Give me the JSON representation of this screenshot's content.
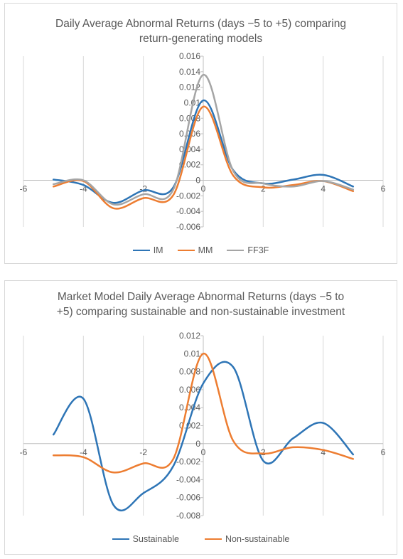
{
  "chart_data": [
    {
      "type": "line",
      "title": "Daily Average Abnormal Returns (days −5 to +5) comparing return-generating models",
      "title_lines": [
        "Daily Average Abnormal Returns (days −5 to +5) comparing",
        "return-generating models"
      ],
      "xlim": [
        -6,
        6
      ],
      "ylim": [
        -0.006,
        0.016
      ],
      "x_ticks": [
        "-6",
        "-4",
        "-2",
        "0",
        "2",
        "4",
        "6"
      ],
      "y_ticks": [
        "0.016",
        "0.014",
        "0.012",
        "0.01",
        "0.008",
        "0.006",
        "0.004",
        "0.002",
        "0",
        "-0.002",
        "-0.004",
        "-0.006"
      ],
      "grid": "vertical",
      "legend": "bottom",
      "x": [
        -5,
        -4,
        -3,
        -2,
        -1,
        0,
        1,
        2,
        3,
        4,
        5
      ],
      "series": [
        {
          "name": "IM",
          "color": "#2e75b6",
          "values": [
            0.0001,
            -0.0006,
            -0.0029,
            -0.0013,
            -0.0009,
            0.0103,
            0.0013,
            -0.0004,
            0.0001,
            0.0007,
            -0.0008
          ]
        },
        {
          "name": "MM",
          "color": "#ed7d31",
          "values": [
            -0.0008,
            -0.0001,
            -0.0036,
            -0.0023,
            -0.0019,
            0.0095,
            0.0006,
            -0.0009,
            -0.0006,
            -0.0001,
            -0.0014
          ]
        },
        {
          "name": "FF3F",
          "color": "#a5a5a5",
          "values": [
            -0.0005,
            0.0,
            -0.0031,
            -0.0018,
            -0.0012,
            0.0136,
            0.0012,
            -0.0004,
            -0.0008,
            -0.0001,
            -0.0012
          ]
        }
      ]
    },
    {
      "type": "line",
      "title": "Market Model Daily Average Abnormal Returns (days −5 to +5) comparing sustainable and non-sustainable investment",
      "title_lines": [
        "Market Model Daily Average Abnormal Returns (days −5 to",
        "+5) comparing sustainable and non-sustainable investment"
      ],
      "xlim": [
        -6,
        6
      ],
      "ylim": [
        -0.008,
        0.012
      ],
      "x_ticks": [
        "-6",
        "-4",
        "-2",
        "0",
        "2",
        "4",
        "6"
      ],
      "y_ticks": [
        "0.012",
        "0.01",
        "0.008",
        "0.006",
        "0.004",
        "0.002",
        "0",
        "-0.002",
        "-0.004",
        "-0.006",
        "-0.008"
      ],
      "grid": "vertical",
      "legend": "bottom",
      "x": [
        -5,
        -4,
        -3,
        -2,
        -1,
        0,
        1,
        2,
        3,
        4,
        5
      ],
      "series": [
        {
          "name": "Sustainable",
          "color": "#2e75b6",
          "values": [
            0.001,
            0.005,
            -0.0068,
            -0.0055,
            -0.0025,
            0.0067,
            0.0085,
            -0.0019,
            0.0006,
            0.0023,
            -0.0012
          ]
        },
        {
          "name": "Non-sustainable",
          "color": "#ed7d31",
          "values": [
            -0.0013,
            -0.0015,
            -0.0032,
            -0.0022,
            -0.0017,
            0.01,
            0.0003,
            -0.0011,
            -0.0004,
            -0.0007,
            -0.0017
          ]
        }
      ]
    }
  ]
}
